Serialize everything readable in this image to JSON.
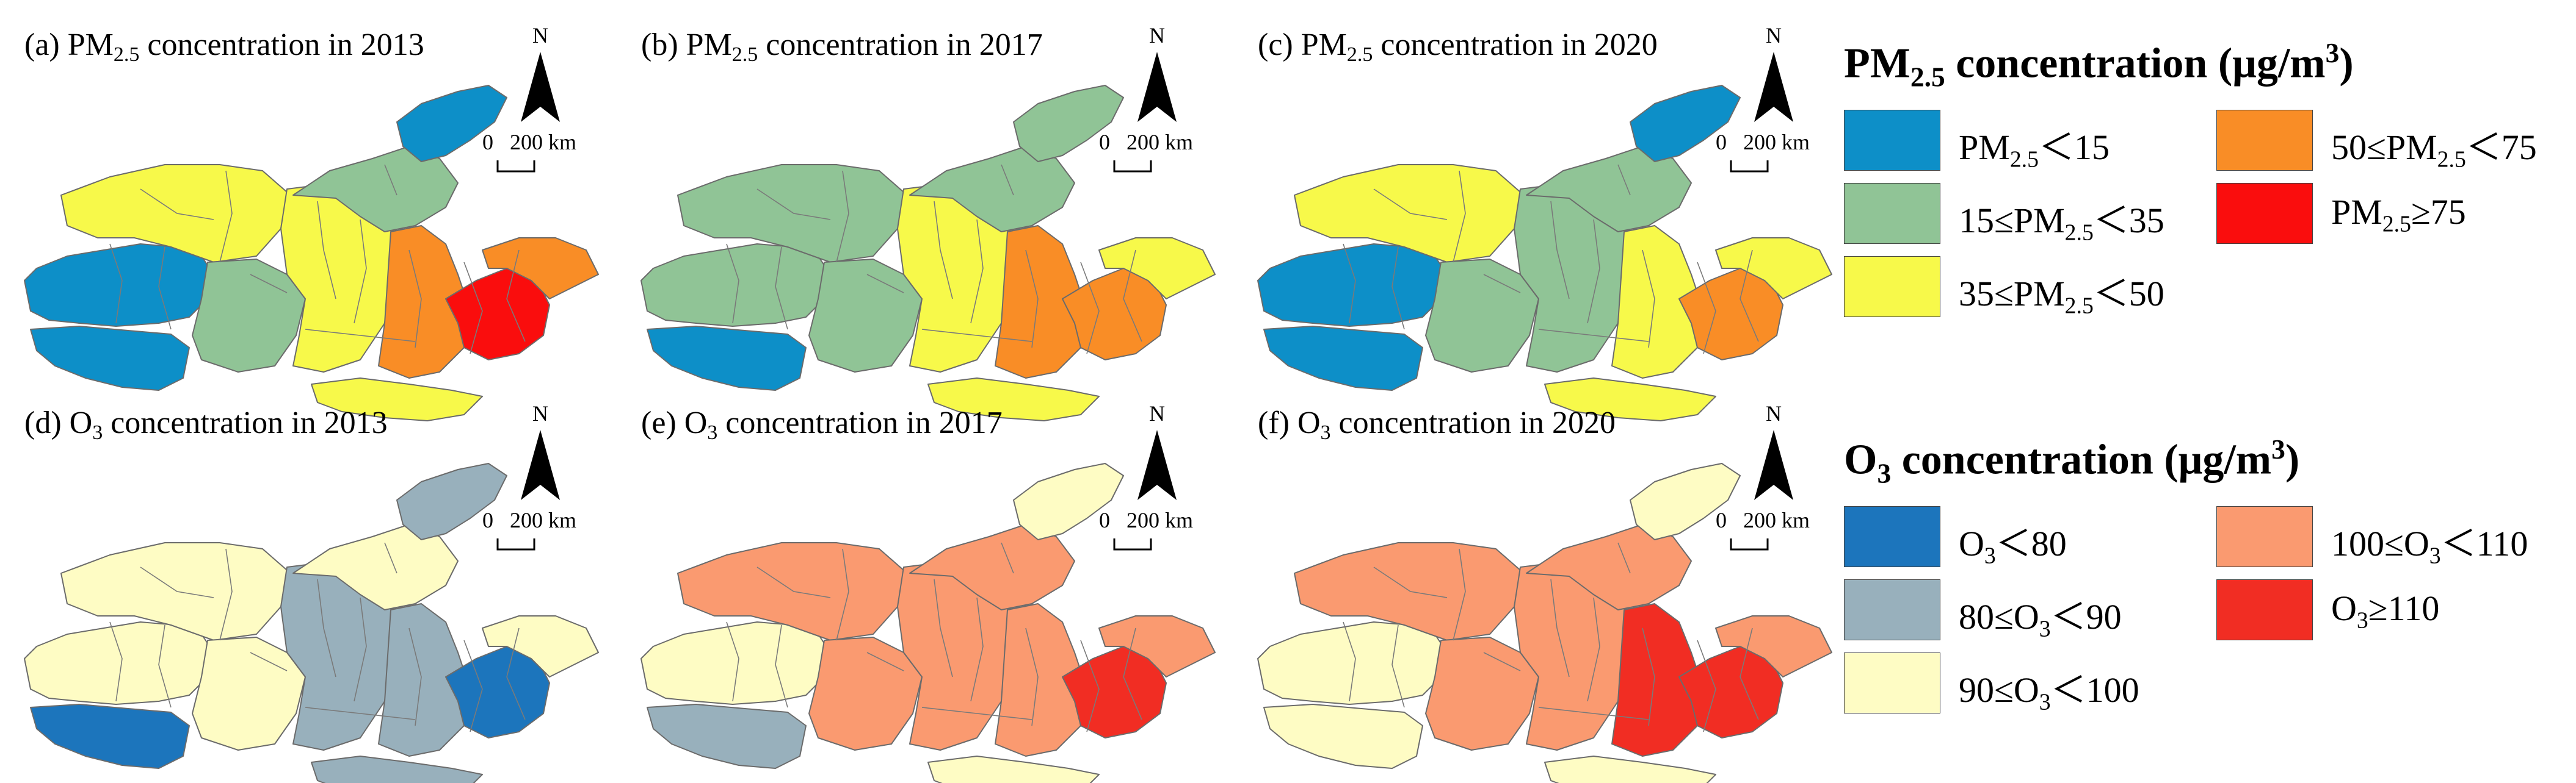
{
  "panels": [
    {
      "id": "a",
      "title": "(a) PM₂.₅ concentration in 2013",
      "row": "pm",
      "year": "2013"
    },
    {
      "id": "b",
      "title": "(b) PM₂.₅ concentration in 2017",
      "row": "pm",
      "year": "2017"
    },
    {
      "id": "c",
      "title": "(c) PM₂.₅ concentration in 2020",
      "row": "pm",
      "year": "2020"
    },
    {
      "id": "d",
      "title": "(d) O₃ concentration in 2013",
      "row": "o3",
      "year": "2013"
    },
    {
      "id": "e",
      "title": "(e) O₃ concentration in 2017",
      "row": "o3",
      "year": "2017"
    },
    {
      "id": "f",
      "title": "(f) O₃ concentration in 2020",
      "row": "o3",
      "year": "2020"
    }
  ],
  "panel_title_parts": {
    "a": [
      "(a) PM",
      "2.5",
      " concentration in 2013"
    ],
    "b": [
      "(b) PM",
      "2.5",
      " concentration in 2017"
    ],
    "c": [
      "(c) PM",
      "2.5",
      " concentration in 2020"
    ],
    "d": [
      "(d) O",
      "3",
      " concentration in 2013"
    ],
    "e": [
      "(e) O",
      "3",
      " concentration in 2017"
    ],
    "f": [
      "(f) O",
      "3",
      " concentration in 2020"
    ]
  },
  "north_arrow_label": "N",
  "scale_bar": {
    "zero": "0",
    "distance": "200 km"
  },
  "legends": {
    "pm": {
      "title_parts": [
        "PM",
        "2.5",
        " concentration (μg/m",
        "3",
        ")"
      ],
      "classes": [
        {
          "key": "c1",
          "label_parts": [
            "PM",
            "2.5",
            "＜15"
          ],
          "color": "#0d8fc8"
        },
        {
          "key": "c2",
          "label_parts": [
            "15≤PM",
            "2.5",
            "＜35"
          ],
          "color": "#90c496"
        },
        {
          "key": "c3",
          "label_parts": [
            "35≤PM",
            "2.5",
            "＜50"
          ],
          "color": "#f7f94a"
        },
        {
          "key": "c4",
          "label_parts": [
            "50≤PM",
            "2.5",
            "＜75"
          ],
          "color": "#f98d26"
        },
        {
          "key": "c5",
          "label_parts": [
            "PM",
            "2.5",
            "≥75"
          ],
          "color": "#fa0d0d"
        }
      ]
    },
    "o3": {
      "title_parts": [
        "O",
        "3",
        " concentration (μg/m",
        "3",
        ")"
      ],
      "classes": [
        {
          "key": "c1",
          "label_parts": [
            "O",
            "3",
            "＜80"
          ],
          "color": "#1c75bc"
        },
        {
          "key": "c2",
          "label_parts": [
            "80≤O",
            "3",
            "＜90"
          ],
          "color": "#98b0bc"
        },
        {
          "key": "c3",
          "label_parts": [
            "90≤O",
            "3",
            "＜100"
          ],
          "color": "#fefcc4"
        },
        {
          "key": "c4",
          "label_parts": [
            "100≤O",
            "3",
            "＜110"
          ],
          "color": "#fa9a70"
        },
        {
          "key": "c5",
          "label_parts": [
            "O",
            "3",
            "≥110"
          ],
          "color": "#f12d23"
        }
      ]
    }
  },
  "panel_colors": {
    "a": {
      "far_west": "c1",
      "southwest": "c1",
      "north_plateau": "c3",
      "mid_west": "c2",
      "center": "c3",
      "mongolia": "c2",
      "ne_tip": "c1",
      "east_core": "c4",
      "hotspot": "c5",
      "coast": "c4",
      "south_strip": "c3"
    },
    "b": {
      "far_west": "c2",
      "southwest": "c1",
      "north_plateau": "c2",
      "mid_west": "c2",
      "center": "c3",
      "mongolia": "c2",
      "ne_tip": "c2",
      "east_core": "c4",
      "hotspot": "c4",
      "coast": "c3",
      "south_strip": "c3"
    },
    "c": {
      "far_west": "c1",
      "southwest": "c1",
      "north_plateau": "c3",
      "mid_west": "c2",
      "center": "c2",
      "mongolia": "c2",
      "ne_tip": "c1",
      "east_core": "c3",
      "hotspot": "c4",
      "coast": "c3",
      "south_strip": "c3"
    },
    "d": {
      "far_west": "c3",
      "southwest": "c1",
      "north_plateau": "c3",
      "mid_west": "c3",
      "center": "c2",
      "mongolia": "c3",
      "ne_tip": "c2",
      "east_core": "c2",
      "hotspot": "c1",
      "coast": "c3",
      "south_strip": "c2"
    },
    "e": {
      "far_west": "c3",
      "southwest": "c2",
      "north_plateau": "c4",
      "mid_west": "c4",
      "center": "c4",
      "mongolia": "c4",
      "ne_tip": "c3",
      "east_core": "c4",
      "hotspot": "c5",
      "coast": "c4",
      "south_strip": "c3"
    },
    "f": {
      "far_west": "c3",
      "southwest": "c3",
      "north_plateau": "c4",
      "mid_west": "c4",
      "center": "c4",
      "mongolia": "c4",
      "ne_tip": "c3",
      "east_core": "c5",
      "hotspot": "c5",
      "coast": "c4",
      "south_strip": "c3"
    }
  }
}
